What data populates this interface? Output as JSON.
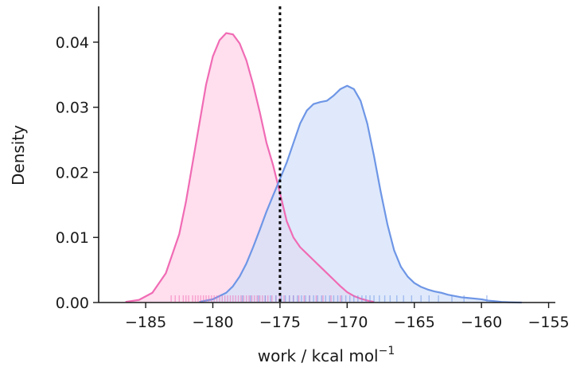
{
  "chart_data": {
    "type": "area",
    "xlabel": "work / kcal mol",
    "xlabel_sup": "−1",
    "ylabel": "Density",
    "xlim": [
      -188.5,
      -154.5
    ],
    "ylim": [
      0,
      0.0455
    ],
    "xticks": [
      -185,
      -180,
      -175,
      -170,
      -165,
      -160,
      -155
    ],
    "xtick_labels": [
      "−185",
      "−180",
      "−175",
      "−170",
      "−165",
      "−160",
      "−155"
    ],
    "yticks": [
      0,
      0.01,
      0.02,
      0.03,
      0.04
    ],
    "ytick_labels": [
      "0.00",
      "0.01",
      "0.02",
      "0.03",
      "0.04"
    ],
    "grid": false,
    "vline": {
      "x": -175,
      "style": "dotted",
      "color": "#000000"
    },
    "series": [
      {
        "color": "#f06bb4",
        "fill": "#ffd1e8",
        "x": [
          -186.5,
          -185.5,
          -184.5,
          -183.5,
          -182.5,
          -182,
          -181.5,
          -181,
          -180.5,
          -180,
          -179.5,
          -179,
          -178.5,
          -178,
          -177.5,
          -177,
          -176.5,
          -176,
          -175.5,
          -175,
          -174.5,
          -174,
          -173.5,
          -173,
          -172.5,
          -172,
          -171.5,
          -171,
          -170.5,
          -170,
          -169.5,
          -169,
          -168.5,
          -168
        ],
        "y": [
          0.0001,
          0.0004,
          0.0015,
          0.0045,
          0.0105,
          0.0155,
          0.0215,
          0.0275,
          0.0335,
          0.0378,
          0.0403,
          0.0414,
          0.0412,
          0.0398,
          0.0372,
          0.0335,
          0.0292,
          0.0245,
          0.021,
          0.0168,
          0.0125,
          0.01,
          0.0085,
          0.0075,
          0.0065,
          0.0055,
          0.0045,
          0.0035,
          0.0025,
          0.0016,
          0.001,
          0.0006,
          0.0003,
          0.0001
        ]
      },
      {
        "color": "#6e96e6",
        "fill": "#d3e0f9",
        "x": [
          -181,
          -180,
          -179,
          -178.5,
          -178,
          -177.5,
          -177,
          -176.5,
          -176,
          -175.5,
          -175,
          -174.5,
          -174,
          -173.5,
          -173,
          -172.5,
          -172,
          -171.5,
          -171,
          -170.5,
          -170,
          -169.5,
          -169,
          -168.5,
          -168,
          -167.5,
          -167,
          -166.5,
          -166,
          -165.5,
          -165,
          -164.5,
          -164,
          -163.5,
          -163,
          -162.5,
          -162,
          -161.5,
          -161,
          -160.5,
          -160,
          -159.5,
          -159,
          -158.5,
          -158,
          -157.5,
          -157
        ],
        "y": [
          0.0001,
          0.0005,
          0.0015,
          0.0025,
          0.004,
          0.006,
          0.0085,
          0.0112,
          0.014,
          0.0165,
          0.019,
          0.0215,
          0.0245,
          0.0275,
          0.0295,
          0.0305,
          0.0308,
          0.031,
          0.0318,
          0.0328,
          0.0333,
          0.0328,
          0.031,
          0.0275,
          0.0225,
          0.017,
          0.012,
          0.008,
          0.0055,
          0.004,
          0.003,
          0.0024,
          0.002,
          0.0017,
          0.0015,
          0.0012,
          0.001,
          0.0008,
          0.0007,
          0.0006,
          0.0005,
          0.0003,
          0.0002,
          0.0001,
          5e-05,
          2e-05,
          0
        ]
      }
    ],
    "rugs": [
      {
        "color": "#f06bb4",
        "values": [
          -183.1,
          -182.8,
          -182.5,
          -182.2,
          -182,
          -181.8,
          -181.5,
          -181.3,
          -181.1,
          -180.9,
          -180.7,
          -180.5,
          -180.3,
          -180.1,
          -179.9,
          -179.7,
          -179.5,
          -179.3,
          -179.1,
          -178.9,
          -178.7,
          -178.5,
          -178.3,
          -178.1,
          -177.9,
          -177.7,
          -177.5,
          -177.3,
          -177.1,
          -176.9,
          -176.7,
          -176.5,
          -176.3,
          -176.1,
          -175.9,
          -175.6,
          -175.3,
          -175,
          -174.7,
          -174.3,
          -174,
          -173.6,
          -173.2,
          -172.8,
          -172.3,
          -171.8,
          -171.2,
          -170.5
        ]
      },
      {
        "color": "#6e96e6",
        "values": [
          -177.8,
          -177.2,
          -176.6,
          -176.1,
          -175.7,
          -175.3,
          -174.9,
          -174.6,
          -174.3,
          -174,
          -173.7,
          -173.4,
          -173.1,
          -172.8,
          -172.5,
          -172.2,
          -171.9,
          -171.6,
          -171.3,
          -171,
          -170.7,
          -170.4,
          -170.1,
          -169.8,
          -169.5,
          -169.2,
          -168.9,
          -168.6,
          -168.3,
          -168,
          -167.6,
          -167.2,
          -166.8,
          -166.3,
          -165.8,
          -165.2,
          -164.5,
          -163.9,
          -163.2,
          -162.2,
          -161.3,
          -159.6
        ]
      }
    ]
  }
}
